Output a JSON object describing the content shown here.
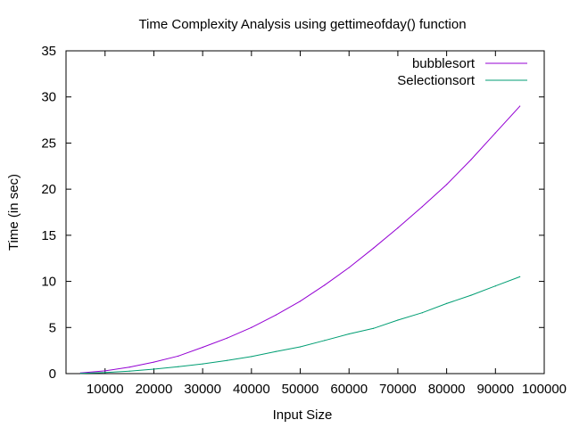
{
  "chart_data": {
    "type": "line",
    "title": "Time Complexity Analysis using  gettimeofday()  function",
    "xlabel": "Input Size",
    "ylabel": "Time (in sec)",
    "xlim": [
      2000,
      100000
    ],
    "ylim": [
      0,
      35
    ],
    "xticks": [
      10000,
      20000,
      30000,
      40000,
      50000,
      60000,
      70000,
      80000,
      90000,
      100000
    ],
    "yticks": [
      0,
      5,
      10,
      15,
      20,
      25,
      30,
      35
    ],
    "grid": false,
    "legend_position": "top-right",
    "series": [
      {
        "name": "bubblesort",
        "color": "#9400d3",
        "x": [
          5000,
          10000,
          15000,
          20000,
          25000,
          30000,
          35000,
          40000,
          45000,
          50000,
          55000,
          60000,
          65000,
          70000,
          75000,
          80000,
          85000,
          90000,
          95000
        ],
        "y": [
          0.08,
          0.3,
          0.7,
          1.25,
          1.9,
          2.85,
          3.85,
          5.0,
          6.35,
          7.85,
          9.6,
          11.5,
          13.6,
          15.8,
          18.1,
          20.5,
          23.2,
          26.1,
          29.0
        ]
      },
      {
        "name": "Selectionsort",
        "color": "#009e73",
        "x": [
          5000,
          10000,
          15000,
          20000,
          25000,
          30000,
          35000,
          40000,
          45000,
          50000,
          55000,
          60000,
          65000,
          70000,
          75000,
          80000,
          85000,
          90000,
          95000
        ],
        "y": [
          0.03,
          0.12,
          0.27,
          0.48,
          0.75,
          1.05,
          1.43,
          1.85,
          2.4,
          2.9,
          3.6,
          4.3,
          4.9,
          5.8,
          6.6,
          7.6,
          8.5,
          9.5,
          10.5
        ]
      }
    ]
  }
}
